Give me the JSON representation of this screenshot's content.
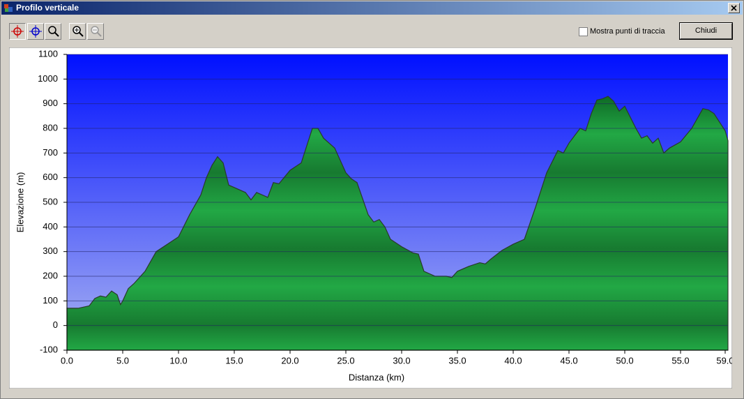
{
  "window": {
    "title": "Profilo verticale",
    "checkbox_label": "Mostra punti di traccia",
    "close_button": "Chiudi"
  },
  "chart_data": {
    "type": "area",
    "xlabel": "Distanza (km)",
    "ylabel": "Elevazione (m)",
    "color": "#22a845",
    "x": [
      0,
      1,
      1.5,
      2,
      2.5,
      3,
      3.5,
      4,
      4.5,
      4.8,
      5,
      5.5,
      6,
      7,
      8,
      9,
      10,
      11,
      12,
      12.5,
      13,
      13.5,
      14,
      14.5,
      15,
      16,
      16.5,
      17,
      18,
      18.5,
      19,
      20,
      21,
      22,
      22.5,
      23,
      24,
      25,
      25.5,
      26,
      27,
      27.5,
      28,
      28.5,
      29,
      30,
      31,
      31.5,
      32,
      33,
      34,
      34.5,
      35,
      36,
      37,
      37.5,
      38,
      39,
      40,
      41,
      42,
      43,
      44,
      44.5,
      45,
      46,
      46.5,
      47,
      47.5,
      48,
      48.5,
      49,
      49.5,
      50,
      51,
      51.5,
      52,
      52.5,
      53,
      53.5,
      54,
      55,
      56,
      57,
      57.5,
      58,
      59,
      59.25
    ],
    "values": [
      70,
      70,
      75,
      80,
      110,
      120,
      115,
      140,
      125,
      85,
      100,
      150,
      170,
      220,
      300,
      330,
      360,
      450,
      530,
      600,
      650,
      685,
      660,
      570,
      560,
      540,
      510,
      540,
      520,
      580,
      575,
      630,
      660,
      800,
      800,
      760,
      720,
      620,
      595,
      580,
      450,
      420,
      430,
      400,
      350,
      320,
      295,
      290,
      220,
      200,
      200,
      195,
      220,
      240,
      255,
      250,
      270,
      305,
      330,
      350,
      480,
      620,
      710,
      700,
      740,
      800,
      790,
      860,
      915,
      920,
      930,
      910,
      870,
      890,
      800,
      760,
      770,
      740,
      760,
      700,
      720,
      745,
      800,
      880,
      875,
      860,
      790,
      750
    ],
    "xlim": [
      0,
      59.25
    ],
    "ylim": [
      -100,
      1100
    ],
    "xticks": [
      {
        "value": 0,
        "label": "0.0"
      },
      {
        "value": 5,
        "label": "5.0"
      },
      {
        "value": 10,
        "label": "10.0"
      },
      {
        "value": 15,
        "label": "15.0"
      },
      {
        "value": 20,
        "label": "20.0"
      },
      {
        "value": 25,
        "label": "25.0"
      },
      {
        "value": 30,
        "label": "30.0"
      },
      {
        "value": 35,
        "label": "35.0"
      },
      {
        "value": 40,
        "label": "40.0"
      },
      {
        "value": 45,
        "label": "45.0"
      },
      {
        "value": 50,
        "label": "50.0"
      },
      {
        "value": 55,
        "label": "55.0"
      },
      {
        "value": 59,
        "label": "59.0"
      }
    ],
    "yticks": [
      -100,
      0,
      100,
      200,
      300,
      400,
      500,
      600,
      700,
      800,
      900,
      1000,
      1100
    ],
    "grid": true
  }
}
